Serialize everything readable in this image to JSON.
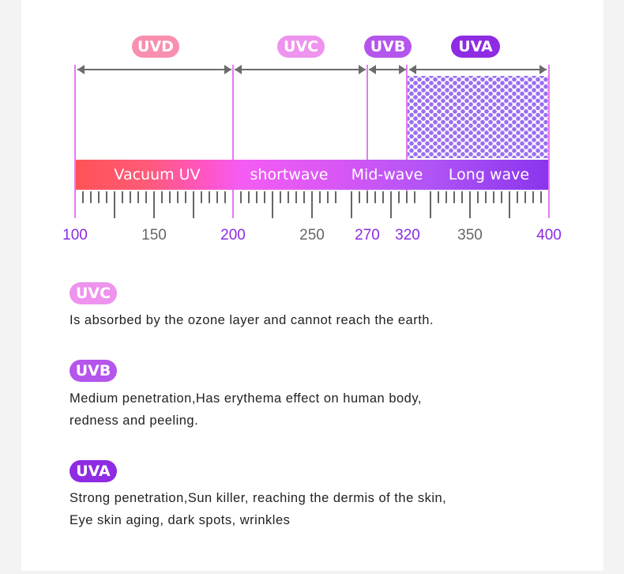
{
  "diagram": {
    "title_pills": [
      {
        "label": "UVD",
        "color": "#f98fae"
      },
      {
        "label": "UVC",
        "color": "#ee93ee"
      },
      {
        "label": "UVB",
        "color": "#b455ec"
      },
      {
        "label": "UVA",
        "color": "#8e2be3"
      }
    ],
    "spectrum_bar": {
      "labels": [
        "Vacuum UV",
        "shortwave",
        "Mid-wave",
        "Long wave"
      ],
      "gradient_start": "#ff5257",
      "gradient_end": "#8a35ee"
    },
    "axis": {
      "range": [
        100,
        400
      ],
      "labels": [
        {
          "value": "100",
          "color": "#8a2be2"
        },
        {
          "value": "150",
          "color": "#666666"
        },
        {
          "value": "200",
          "color": "#8a2be2"
        },
        {
          "value": "250",
          "color": "#666666"
        },
        {
          "value": "270",
          "color": "#8a2be2"
        },
        {
          "value": "320",
          "color": "#8a2be2"
        },
        {
          "value": "350",
          "color": "#666666"
        },
        {
          "value": "400",
          "color": "#8a2be2"
        }
      ]
    },
    "bands": [
      {
        "name": "UVD",
        "from": 100,
        "to": 200
      },
      {
        "name": "UVC",
        "from": 200,
        "to": 270
      },
      {
        "name": "UVB",
        "from": 270,
        "to": 320
      },
      {
        "name": "UVA",
        "from": 320,
        "to": 400,
        "hatched": true
      }
    ]
  },
  "sections": [
    {
      "badge": "UVC",
      "color": "#ee93ee",
      "lines": [
        "Is absorbed by the ozone layer and cannot reach the earth."
      ]
    },
    {
      "badge": "UVB",
      "color": "#b455ec",
      "lines": [
        "Medium penetration,Has erythema effect on human body,",
        "redness and peeling."
      ]
    },
    {
      "badge": "UVA",
      "color": "#8e2be3",
      "lines": [
        "Strong penetration,Sun killer, reaching the dermis of the skin,",
        "Eye skin aging, dark spots, wrinkles"
      ]
    }
  ]
}
